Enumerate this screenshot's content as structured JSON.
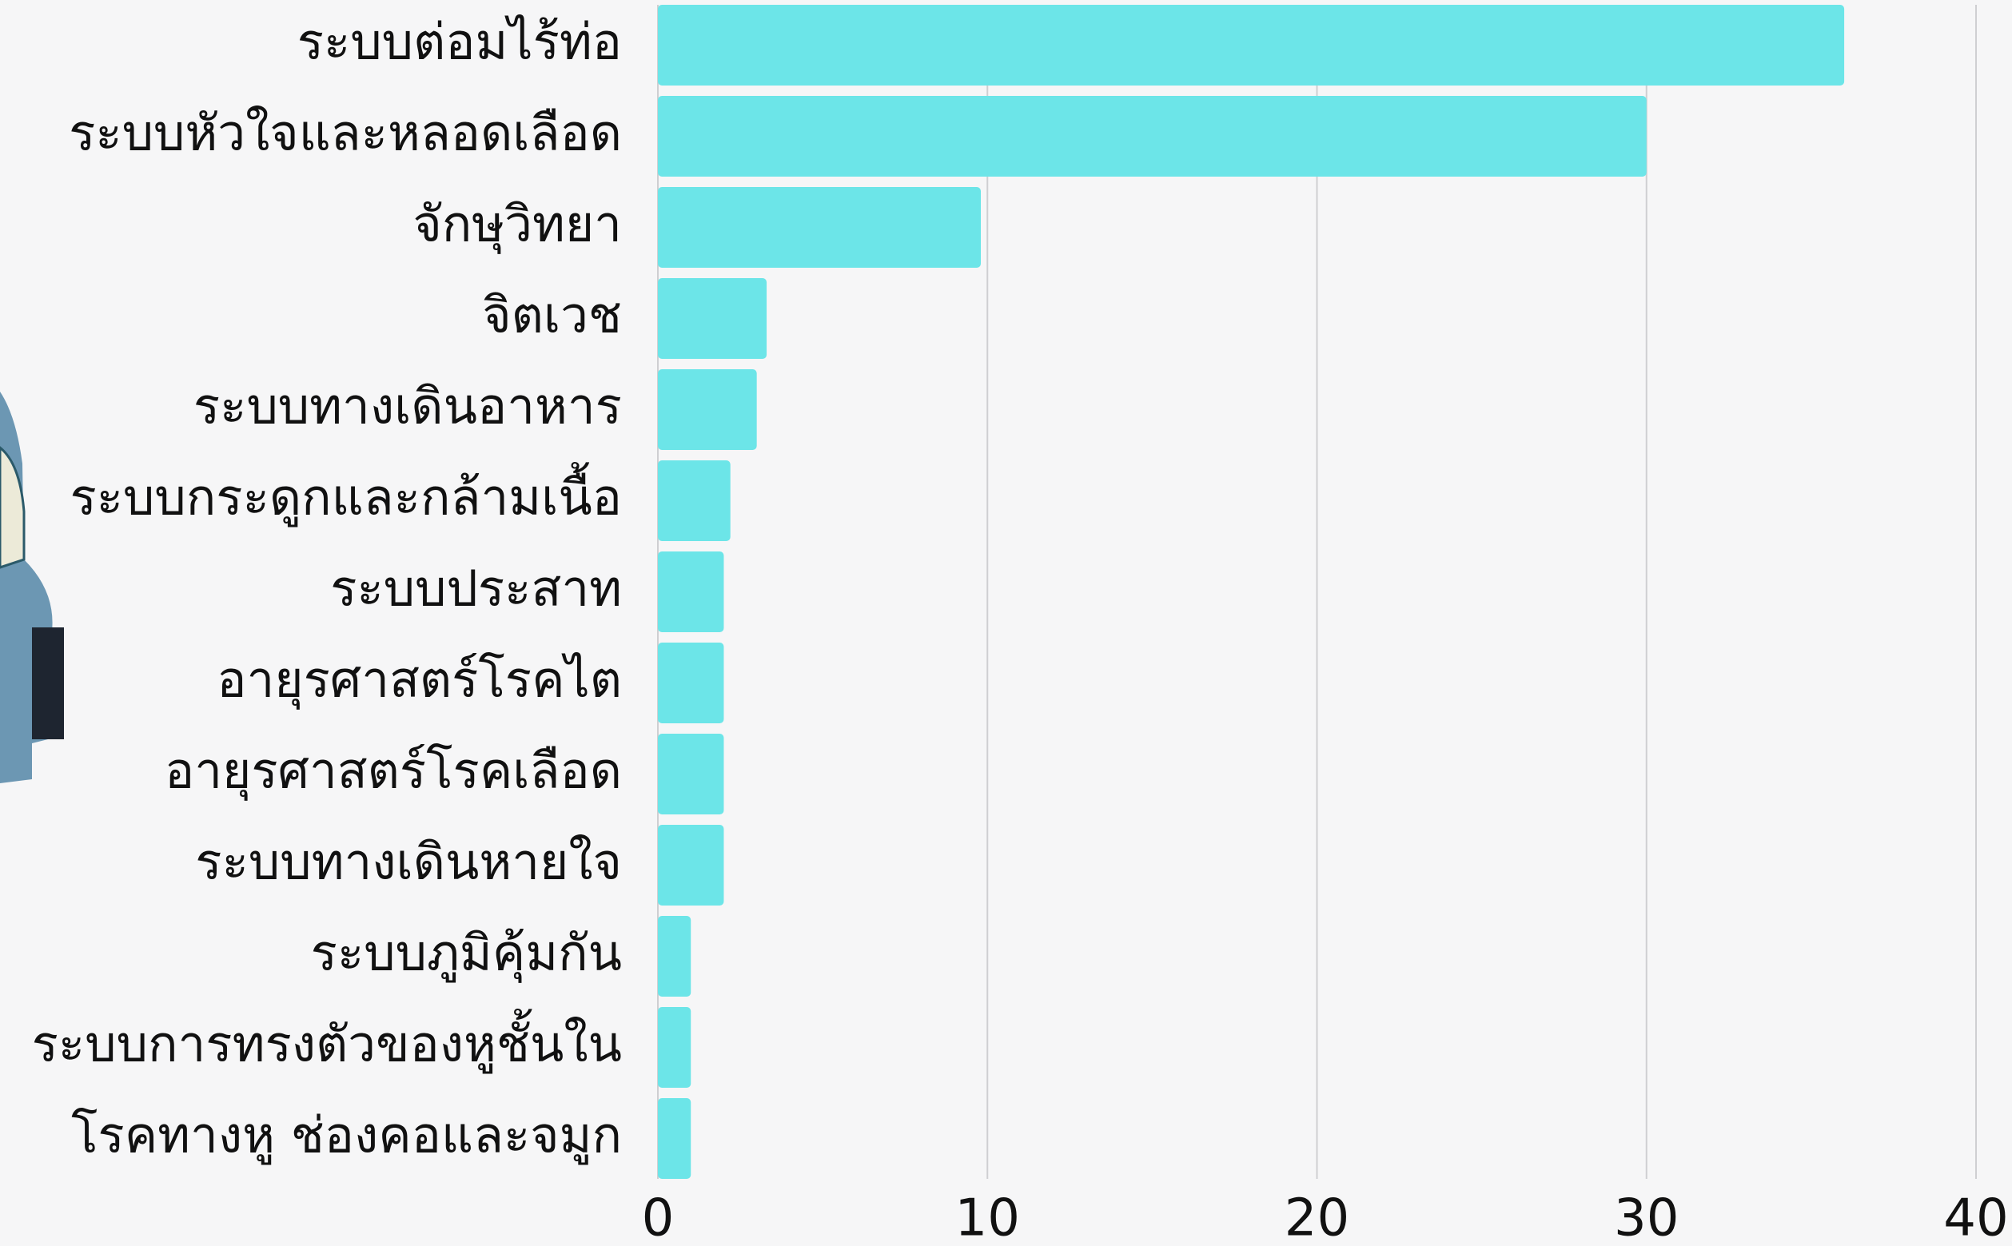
{
  "chart_data": {
    "type": "hbar",
    "categories": [
      "ระบบต่อมไร้ท่อ",
      "ระบบหัวใจและหลอดเลือด",
      "จักษุวิทยา",
      "จิตเวช",
      "ระบบทางเดินอาหาร",
      "ระบบกระดูกและกล้ามเนื้อ",
      "ระบบประสาท",
      "อายุรศาสตร์โรคไต",
      "อายุรศาสตร์โรคเลือด",
      "ระบบทางเดินหายใจ",
      "ระบบภูมิคุ้มกัน",
      "ระบบการทรงตัวของหูชั้นใน",
      "โรคทางหู ช่องคอและจมูก"
    ],
    "values": [
      36,
      30,
      9.8,
      3.3,
      3.0,
      2.2,
      2,
      2,
      2,
      2,
      1,
      1,
      1
    ],
    "color": "#6ce5e8",
    "xlim": [
      0,
      40
    ],
    "xticks": [
      0,
      10,
      20,
      30,
      40
    ],
    "grid": true
  }
}
